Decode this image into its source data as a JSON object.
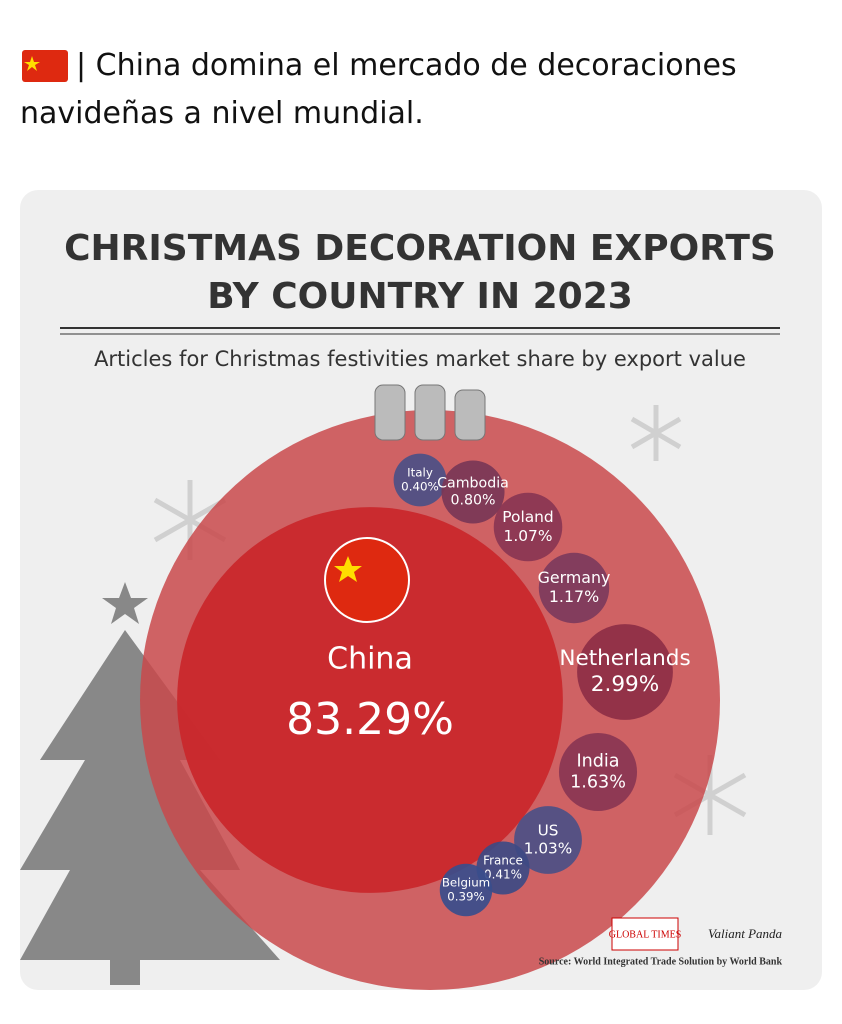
{
  "post": {
    "text": "| China domina el mercado de decoraciones navideñas a nivel mundial."
  },
  "chart_data": {
    "type": "bubble",
    "title": [
      "CHRISTMAS DECORATION EXPORTS",
      "BY COUNTRY IN 2023"
    ],
    "subtitle": "Articles for Christmas festivities market share by export value",
    "categories": [
      "China",
      "Italy",
      "Cambodia",
      "Poland",
      "Germany",
      "Netherlands",
      "India",
      "US",
      "France",
      "Belgium"
    ],
    "values": [
      83.29,
      0.4,
      0.8,
      1.07,
      1.17,
      2.99,
      1.63,
      1.03,
      0.41,
      0.39
    ],
    "value_labels": [
      "83.29%",
      "0.40%",
      "0.80%",
      "1.07%",
      "1.17%",
      "2.99%",
      "1.63%",
      "1.03%",
      "0.41%",
      "0.39%"
    ],
    "colors": [
      "#c9282c",
      "#4c4f86",
      "#7a3656",
      "#8a3552",
      "#7d3a5c",
      "#8e2e45",
      "#8a3552",
      "#4c4f86",
      "#3d4a84",
      "#3a4d8c"
    ],
    "source": "Source: World Integrated Trade Solution by World Bank",
    "logos": [
      "GLOBAL TIMES",
      "Valiant Panda"
    ]
  }
}
